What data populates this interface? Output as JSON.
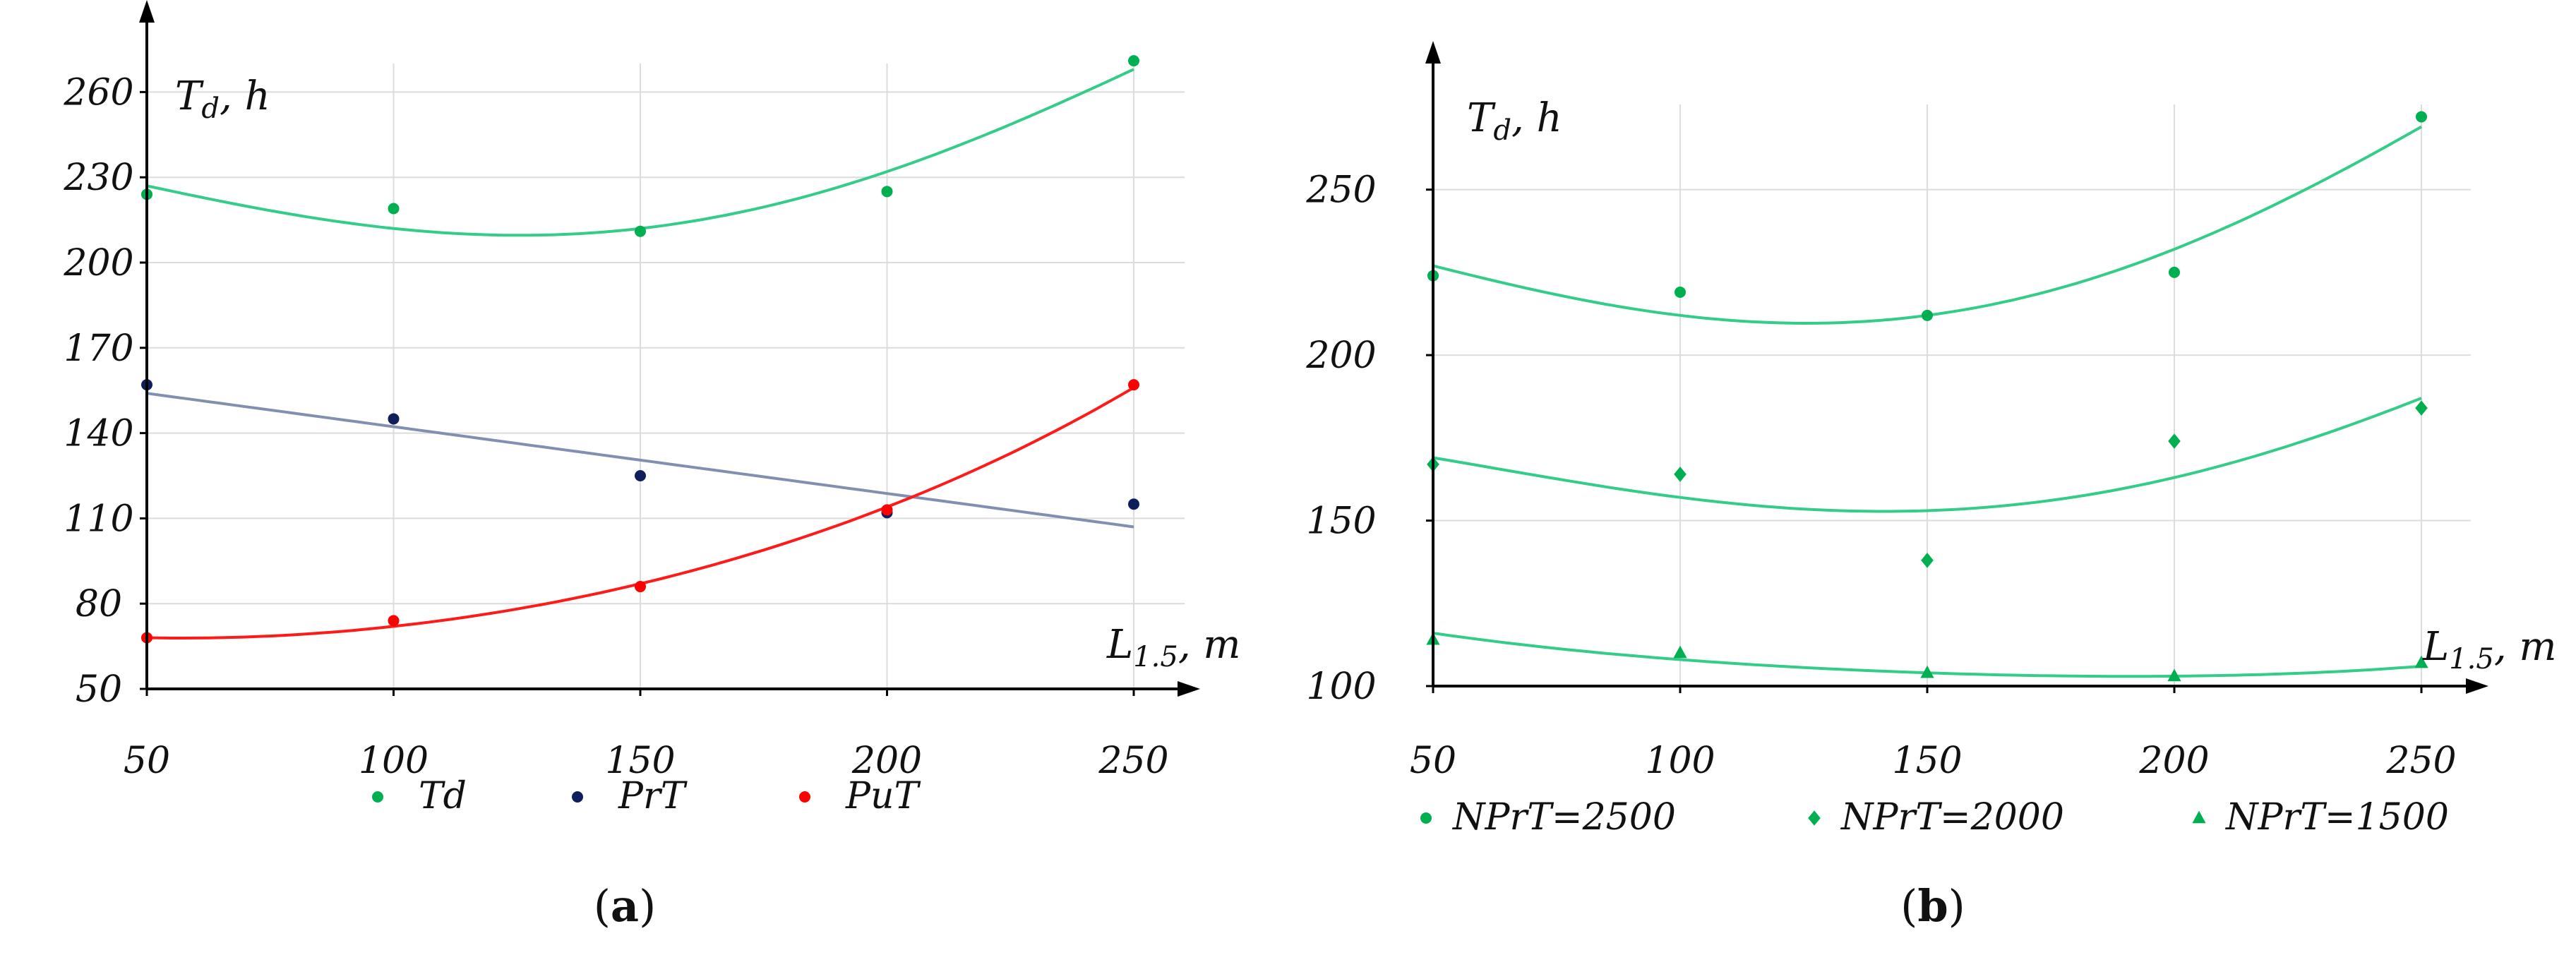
{
  "chart_data": [
    {
      "type": "scatter",
      "panel_label": {
        "open": "(",
        "letter": "a",
        "close": ")"
      },
      "ylabel": {
        "main": "T",
        "sub": "d",
        "rest": ", h"
      },
      "xlabel": {
        "main": "L",
        "sub": "1.5",
        "rest": ", m"
      },
      "x_ticks": [
        50,
        100,
        150,
        200,
        250
      ],
      "y_ticks": [
        50,
        80,
        110,
        140,
        170,
        200,
        230,
        260
      ],
      "xlim": [
        50,
        260
      ],
      "ylim": [
        50,
        275
      ],
      "grid": true,
      "legend_position": "bottom",
      "series": [
        {
          "name": "Td",
          "color": "#00b050",
          "marker": "circle",
          "x": [
            50,
            100,
            150,
            200,
            250
          ],
          "y": [
            224,
            219,
            211,
            225,
            271
          ],
          "trend": {
            "kind": "poly2",
            "color": "#33cc88",
            "x": [
              50,
              100,
              150,
              200,
              250
            ],
            "y": [
              227,
              212,
              212,
              232,
              268
            ]
          }
        },
        {
          "name": "PrT",
          "color": "#0f1f5c",
          "marker": "circle",
          "x": [
            50,
            100,
            150,
            200,
            250
          ],
          "y": [
            157,
            145,
            125,
            112,
            115
          ],
          "trend": {
            "kind": "linear",
            "color": "#8090b0",
            "x": [
              50,
              250
            ],
            "y": [
              154,
              107
            ]
          }
        },
        {
          "name": "PuT",
          "color": "#ff0000",
          "marker": "circle",
          "x": [
            50,
            100,
            150,
            200,
            250
          ],
          "y": [
            68,
            74,
            86,
            113,
            157
          ],
          "trend": {
            "kind": "poly2",
            "color": "#ff1a1a",
            "x": [
              50,
              100,
              150,
              200,
              250
            ],
            "y": [
              68,
              72,
              87,
              114,
              156
            ]
          }
        }
      ]
    },
    {
      "type": "scatter",
      "panel_label": {
        "open": "(",
        "letter": "b",
        "close": ")"
      },
      "ylabel": {
        "main": "T",
        "sub": "d",
        "rest": ", h"
      },
      "xlabel": {
        "main": "L",
        "sub": "1.5",
        "rest": ", m"
      },
      "x_ticks": [
        50,
        100,
        150,
        200,
        250
      ],
      "y_ticks": [
        100,
        150,
        200,
        250
      ],
      "xlim": [
        50,
        260
      ],
      "ylim": [
        100,
        280
      ],
      "grid": true,
      "legend_position": "bottom",
      "series": [
        {
          "name": "NPrT=2500",
          "color": "#00b050",
          "marker": "circle",
          "x": [
            50,
            100,
            150,
            200,
            250
          ],
          "y": [
            224,
            219,
            212,
            225,
            272
          ],
          "trend": {
            "kind": "poly2",
            "color": "#33cc88",
            "x": [
              50,
              100,
              150,
              200,
              250
            ],
            "y": [
              227,
              212,
              212,
              232,
              269
            ]
          }
        },
        {
          "name": "NPrT=2000",
          "color": "#00b050",
          "marker": "diamond",
          "x": [
            50,
            100,
            150,
            200,
            250
          ],
          "y": [
            167,
            164,
            138,
            174,
            184
          ],
          "trend": {
            "kind": "poly2",
            "color": "#33cc88",
            "x": [
              50,
              100,
              150,
              200,
              250
            ],
            "y": [
              169,
              157,
              153,
              163,
              187
            ]
          }
        },
        {
          "name": "NPrT=1500",
          "color": "#00b050",
          "marker": "triangle",
          "x": [
            50,
            100,
            150,
            200,
            250
          ],
          "y": [
            114,
            110,
            104,
            103,
            107
          ],
          "trend": {
            "kind": "poly2",
            "color": "#33cc88",
            "x": [
              50,
              100,
              150,
              200,
              250
            ],
            "y": [
              116,
              108,
              104,
              103,
              106
            ]
          }
        }
      ]
    }
  ]
}
